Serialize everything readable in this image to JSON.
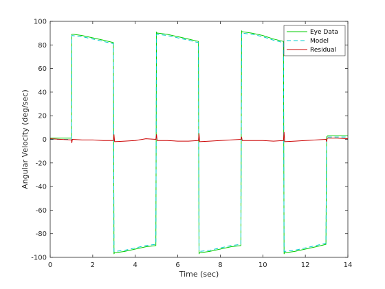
{
  "chart_data": {
    "type": "line",
    "title": "",
    "xlabel": "Time (sec)",
    "ylabel": "Angular  Velocity  (deg/sec)",
    "xlim": [
      0,
      14
    ],
    "ylim": [
      -100,
      100
    ],
    "xticks": [
      0,
      2,
      4,
      6,
      8,
      10,
      12,
      14
    ],
    "yticks": [
      -100,
      -80,
      -60,
      -40,
      -20,
      0,
      20,
      40,
      60,
      80,
      100
    ],
    "grid": false,
    "legend_position": "top-right",
    "series": [
      {
        "name": "Eye Data",
        "color": "#00cc00",
        "dash": "solid",
        "x": [
          0,
          1.0,
          1.02,
          1.1,
          1.5,
          2.0,
          2.5,
          2.97,
          3.0,
          3.03,
          3.1,
          3.5,
          4.0,
          4.5,
          4.97,
          5.0,
          5.03,
          5.1,
          5.5,
          6.0,
          6.5,
          6.97,
          7.0,
          7.03,
          7.1,
          7.5,
          8.0,
          8.5,
          8.97,
          9.0,
          9.03,
          9.1,
          9.5,
          10.0,
          10.5,
          10.97,
          11.0,
          11.03,
          11.1,
          11.5,
          12.0,
          12.5,
          12.97,
          13.0,
          13.05,
          13.2,
          13.6,
          14.0
        ],
        "y": [
          1,
          1,
          89,
          89,
          88,
          86,
          84,
          82,
          -97,
          -96,
          -96,
          -95,
          -93,
          -91,
          -90,
          91,
          90,
          90,
          89,
          87,
          85,
          83,
          -97,
          -96,
          -96,
          -95,
          -93,
          -91,
          -90,
          92,
          91,
          91,
          90,
          88,
          85,
          83,
          -97,
          -96,
          -96,
          -95,
          -93,
          -91,
          -89,
          2,
          3,
          3,
          3,
          3
        ]
      },
      {
        "name": "Model",
        "color": "#00cccc",
        "dash": "dashed",
        "x": [
          0,
          1.0,
          1.02,
          1.5,
          2.0,
          2.5,
          2.97,
          3.0,
          3.03,
          3.5,
          4.0,
          4.5,
          4.97,
          5.0,
          5.03,
          5.5,
          6.0,
          6.5,
          6.97,
          7.0,
          7.03,
          7.5,
          8.0,
          8.5,
          8.97,
          9.0,
          9.03,
          9.5,
          10.0,
          10.5,
          10.97,
          11.0,
          11.03,
          11.5,
          12.0,
          12.5,
          12.97,
          13.0,
          13.05,
          14.0
        ],
        "y": [
          0,
          0,
          88,
          87,
          85,
          83,
          81,
          -95,
          -95,
          -94,
          -92,
          -90,
          -89,
          89,
          89,
          88,
          86,
          84,
          82,
          -95,
          -95,
          -94,
          -92,
          -90,
          -89,
          90,
          90,
          89,
          87,
          84,
          82,
          -95,
          -95,
          -94,
          -92,
          -90,
          -88,
          1,
          2,
          2
        ]
      },
      {
        "name": "Residual",
        "color": "#cc0000",
        "dash": "solid",
        "x": [
          0,
          0.5,
          1.0,
          1.02,
          1.04,
          1.5,
          2.0,
          2.5,
          2.97,
          3.0,
          3.03,
          3.5,
          4.0,
          4.5,
          4.97,
          5.0,
          5.03,
          5.5,
          6.0,
          6.5,
          6.97,
          7.0,
          7.03,
          7.5,
          8.0,
          8.5,
          8.97,
          9.0,
          9.03,
          9.5,
          10.0,
          10.5,
          10.97,
          11.0,
          11.03,
          11.5,
          12.0,
          12.5,
          12.97,
          13.0,
          13.03,
          13.5,
          14.0
        ],
        "y": [
          0.5,
          0,
          -0.5,
          -3,
          0,
          -0.5,
          -0.5,
          -1,
          -1,
          4,
          -2,
          -1.5,
          -1,
          0.5,
          0,
          4,
          -1,
          -1,
          -1.5,
          -1.5,
          -1,
          5,
          -2,
          -1.5,
          -1,
          -0.5,
          0,
          2,
          -1,
          -1,
          -1,
          -1.5,
          -1,
          6,
          -2,
          -1.5,
          -1,
          -0.5,
          0,
          -2,
          1,
          1,
          0.5
        ]
      }
    ]
  }
}
